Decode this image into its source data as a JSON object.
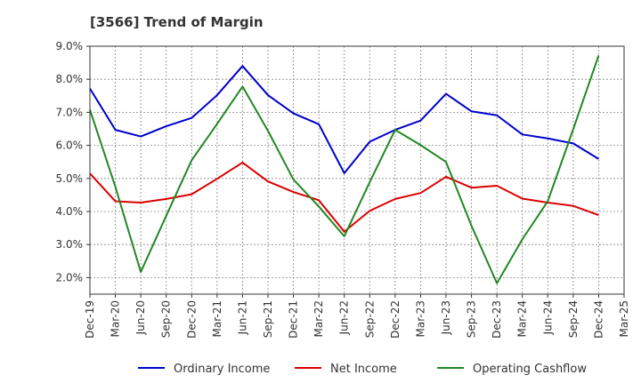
{
  "chart_data": {
    "type": "line",
    "title": "[3566]  Trend of Margin",
    "xlabel": "",
    "ylabel": "",
    "x": [
      "Dec-19",
      "Mar-20",
      "Jun-20",
      "Sep-20",
      "Dec-20",
      "Mar-21",
      "Jun-21",
      "Sep-21",
      "Dec-21",
      "Mar-22",
      "Jun-22",
      "Sep-22",
      "Dec-22",
      "Mar-23",
      "Jun-23",
      "Sep-23",
      "Dec-23",
      "Mar-24",
      "Jun-24",
      "Sep-24",
      "Dec-24",
      "Mar-25"
    ],
    "ylim": [
      1.5,
      9.0
    ],
    "yticks": [
      2.0,
      3.0,
      4.0,
      5.0,
      6.0,
      7.0,
      8.0,
      9.0
    ],
    "ytick_labels": [
      "2.0%",
      "3.0%",
      "4.0%",
      "5.0%",
      "6.0%",
      "7.0%",
      "8.0%",
      "9.0%"
    ],
    "grid": true,
    "legend_position": "bottom",
    "series": [
      {
        "name": "Ordinary Income",
        "color": "#0000cc",
        "values": [
          7.72,
          6.47,
          6.27,
          6.58,
          6.83,
          7.52,
          8.4,
          7.52,
          6.97,
          6.64,
          5.16,
          6.11,
          6.47,
          6.75,
          7.56,
          7.03,
          6.91,
          6.33,
          6.21,
          6.06,
          5.59,
          null
        ]
      },
      {
        "name": "Net Income",
        "color": "#dd0000",
        "values": [
          5.15,
          4.31,
          4.27,
          4.38,
          4.52,
          4.99,
          5.48,
          4.91,
          4.59,
          4.34,
          3.39,
          4.02,
          4.38,
          4.56,
          5.05,
          4.72,
          4.78,
          4.39,
          4.27,
          4.17,
          3.89,
          null
        ]
      },
      {
        "name": "Operating Cashflow",
        "color": "#228822",
        "values": [
          7.08,
          4.75,
          2.17,
          3.87,
          5.55,
          6.65,
          7.78,
          6.44,
          4.97,
          4.15,
          3.25,
          4.89,
          6.47,
          6.01,
          5.5,
          3.57,
          1.83,
          3.16,
          4.31,
          6.49,
          8.72,
          null
        ]
      }
    ]
  }
}
